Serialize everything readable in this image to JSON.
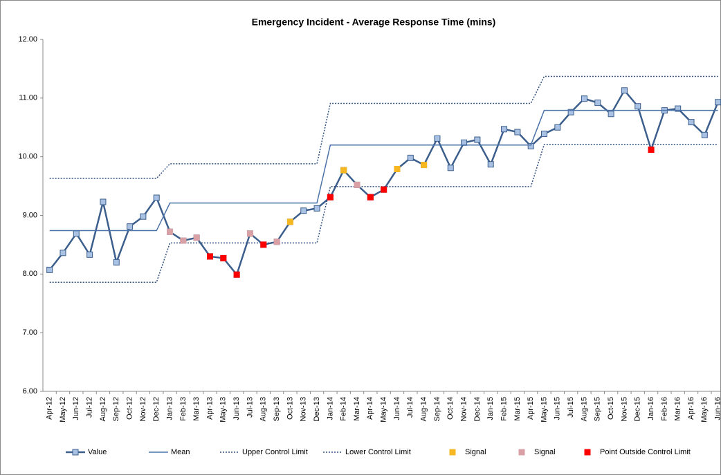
{
  "chart_data": {
    "type": "line",
    "title": "Emergency Incident - Average Response Time (mins)",
    "categories": [
      "Apr-12",
      "May-12",
      "Jun-12",
      "Jul-12",
      "Aug-12",
      "Sep-12",
      "Oct-12",
      "Nov-12",
      "Dec-12",
      "Jan-13",
      "Feb-13",
      "Mar-13",
      "Apr-13",
      "May-13",
      "Jun-13",
      "Jul-13",
      "Aug-13",
      "Sep-13",
      "Oct-13",
      "Nov-13",
      "Dec-13",
      "Jan-14",
      "Feb-14",
      "Mar-14",
      "Apr-14",
      "May-14",
      "Jun-14",
      "Jul-14",
      "Aug-14",
      "Sep-14",
      "Oct-14",
      "Nov-14",
      "Dec-14",
      "Jan-15",
      "Feb-15",
      "Mar-15",
      "Apr-15",
      "May-15",
      "Jun-15",
      "Jul-15",
      "Aug-15",
      "Sep-15",
      "Oct-15",
      "Nov-15",
      "Dec-15",
      "Jan-16",
      "Feb-16",
      "Mar-16",
      "Apr-16",
      "May-16",
      "Jun-16"
    ],
    "ylim": [
      6,
      12
    ],
    "yticks": [
      {
        "value": 6,
        "label": "6.00"
      },
      {
        "value": 7,
        "label": "7.00"
      },
      {
        "value": 8,
        "label": "8.00"
      },
      {
        "value": 9,
        "label": "9.00"
      },
      {
        "value": 10,
        "label": "10.00"
      },
      {
        "value": 11,
        "label": "11.00"
      },
      {
        "value": 12,
        "label": "12.00"
      }
    ],
    "grid": false,
    "legend": "bottom",
    "series": [
      {
        "name": "Value",
        "color": "#3b5e8c",
        "marker_color": "#a9c1e3",
        "line_style": "solid",
        "marker": true,
        "values": [
          8.07,
          8.36,
          8.69,
          8.33,
          9.23,
          8.2,
          8.81,
          8.98,
          9.3,
          8.72,
          8.57,
          8.62,
          8.3,
          8.27,
          7.99,
          8.69,
          8.5,
          8.55,
          8.89,
          9.08,
          9.12,
          9.31,
          9.77,
          9.52,
          9.31,
          9.44,
          9.79,
          9.98,
          9.86,
          10.31,
          9.81,
          10.24,
          10.29,
          9.87,
          10.47,
          10.42,
          10.18,
          10.39,
          10.5,
          10.76,
          10.99,
          10.92,
          10.73,
          11.13,
          10.86,
          10.12,
          10.79,
          10.82,
          10.59,
          10.37,
          10.93
        ]
      },
      {
        "name": "Mean",
        "color": "#4a72a8",
        "line_style": "solid",
        "marker": false,
        "values": [
          8.74,
          8.74,
          8.74,
          8.74,
          8.74,
          8.74,
          8.74,
          8.74,
          8.74,
          9.21,
          9.21,
          9.21,
          9.21,
          9.21,
          9.21,
          9.21,
          9.21,
          9.21,
          9.21,
          9.21,
          9.21,
          10.2,
          10.2,
          10.2,
          10.2,
          10.2,
          10.2,
          10.2,
          10.2,
          10.2,
          10.2,
          10.2,
          10.2,
          10.2,
          10.2,
          10.2,
          10.2,
          10.79,
          10.79,
          10.79,
          10.79,
          10.79,
          10.79,
          10.79,
          10.79,
          10.79,
          10.79,
          10.79,
          10.79,
          10.79,
          10.79
        ]
      },
      {
        "name": "Upper Control Limit",
        "color": "#2f4f7f",
        "line_style": "dotted",
        "marker": false,
        "values": [
          9.63,
          9.63,
          9.63,
          9.63,
          9.63,
          9.63,
          9.63,
          9.63,
          9.63,
          9.88,
          9.88,
          9.88,
          9.88,
          9.88,
          9.88,
          9.88,
          9.88,
          9.88,
          9.88,
          9.88,
          9.88,
          10.91,
          10.91,
          10.91,
          10.91,
          10.91,
          10.91,
          10.91,
          10.91,
          10.91,
          10.91,
          10.91,
          10.91,
          10.91,
          10.91,
          10.91,
          10.91,
          11.37,
          11.37,
          11.37,
          11.37,
          11.37,
          11.37,
          11.37,
          11.37,
          11.37,
          11.37,
          11.37,
          11.37,
          11.37,
          11.37
        ]
      },
      {
        "name": "Lower Control Limit",
        "color": "#2f4f7f",
        "line_style": "dotted",
        "marker": false,
        "values": [
          7.86,
          7.86,
          7.86,
          7.86,
          7.86,
          7.86,
          7.86,
          7.86,
          7.86,
          8.53,
          8.53,
          8.53,
          8.53,
          8.53,
          8.53,
          8.53,
          8.53,
          8.53,
          8.53,
          8.53,
          8.53,
          9.49,
          9.49,
          9.49,
          9.49,
          9.49,
          9.49,
          9.49,
          9.49,
          9.49,
          9.49,
          9.49,
          9.49,
          9.49,
          9.49,
          9.49,
          9.49,
          10.21,
          10.21,
          10.21,
          10.21,
          10.21,
          10.21,
          10.21,
          10.21,
          10.21,
          10.21,
          10.21,
          10.21,
          10.21,
          10.21
        ]
      },
      {
        "name": "Signal",
        "color": "#f5b722",
        "line_style": "none",
        "marker": true,
        "values": [
          null,
          null,
          null,
          null,
          null,
          null,
          null,
          null,
          null,
          null,
          null,
          null,
          null,
          null,
          null,
          null,
          null,
          null,
          8.89,
          null,
          null,
          null,
          9.77,
          null,
          null,
          null,
          9.79,
          null,
          9.86,
          null,
          null,
          null,
          null,
          null,
          null,
          null,
          null,
          null,
          null,
          null,
          null,
          null,
          null,
          null,
          null,
          null,
          null,
          null,
          null,
          null,
          null
        ]
      },
      {
        "name": "Signal",
        "color": "#d9a0a6",
        "line_style": "none",
        "marker": true,
        "values": [
          null,
          null,
          null,
          null,
          null,
          null,
          null,
          null,
          null,
          8.72,
          8.57,
          8.62,
          null,
          null,
          null,
          8.69,
          null,
          8.55,
          null,
          null,
          null,
          null,
          null,
          9.52,
          null,
          null,
          null,
          null,
          null,
          null,
          null,
          null,
          null,
          null,
          null,
          null,
          null,
          null,
          null,
          null,
          null,
          null,
          null,
          null,
          null,
          null,
          null,
          null,
          null,
          null,
          null
        ]
      },
      {
        "name": "Point Outside Control Limit",
        "color": "#ff0000",
        "line_style": "none",
        "marker": true,
        "values": [
          null,
          null,
          null,
          null,
          null,
          null,
          null,
          null,
          null,
          null,
          null,
          null,
          8.3,
          8.27,
          7.99,
          null,
          8.5,
          null,
          null,
          null,
          null,
          9.31,
          null,
          null,
          9.31,
          9.44,
          null,
          null,
          null,
          null,
          null,
          null,
          null,
          null,
          null,
          null,
          null,
          null,
          null,
          null,
          null,
          null,
          null,
          null,
          null,
          10.12,
          null,
          null,
          null,
          null,
          null
        ]
      }
    ]
  }
}
